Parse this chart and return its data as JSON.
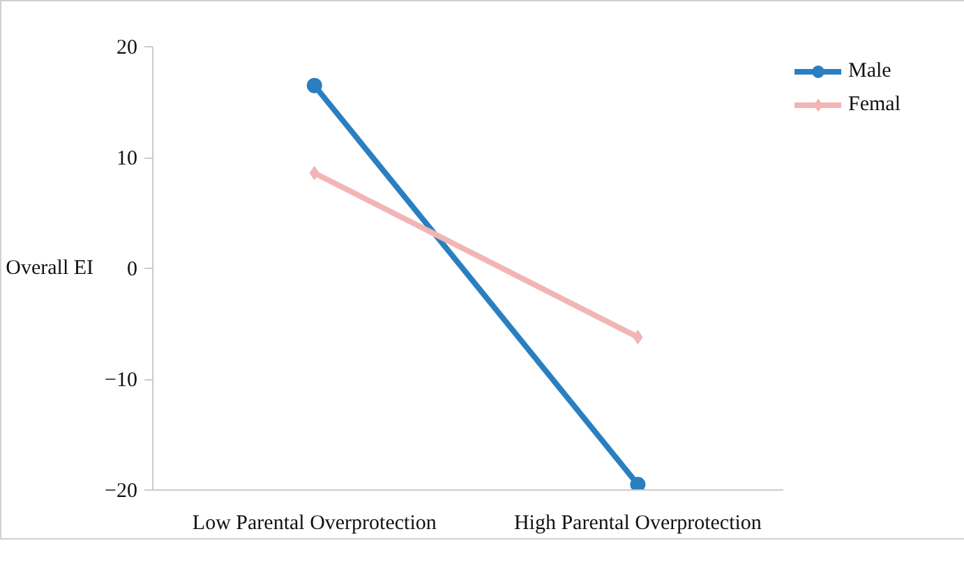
{
  "chart_data": {
    "type": "line",
    "ylabel": "Overall EI",
    "categories": [
      "Low Parental Overprotection",
      "High Parental Overprotection"
    ],
    "series": [
      {
        "name": "Male",
        "color": "#2a7fc1",
        "values": [
          16.5,
          -19.5
        ],
        "marker": "circle"
      },
      {
        "name": "Femal",
        "color": "#f2b5b5",
        "values": [
          8.6,
          -6.2
        ],
        "marker": "diamond"
      }
    ],
    "ylim": [
      -20,
      20
    ],
    "yticks": [
      {
        "value": -20,
        "label": "−20"
      },
      {
        "value": -10,
        "label": "−10"
      },
      0,
      10,
      20
    ],
    "grid": false,
    "legend": "top right",
    "line_style": "solid"
  }
}
